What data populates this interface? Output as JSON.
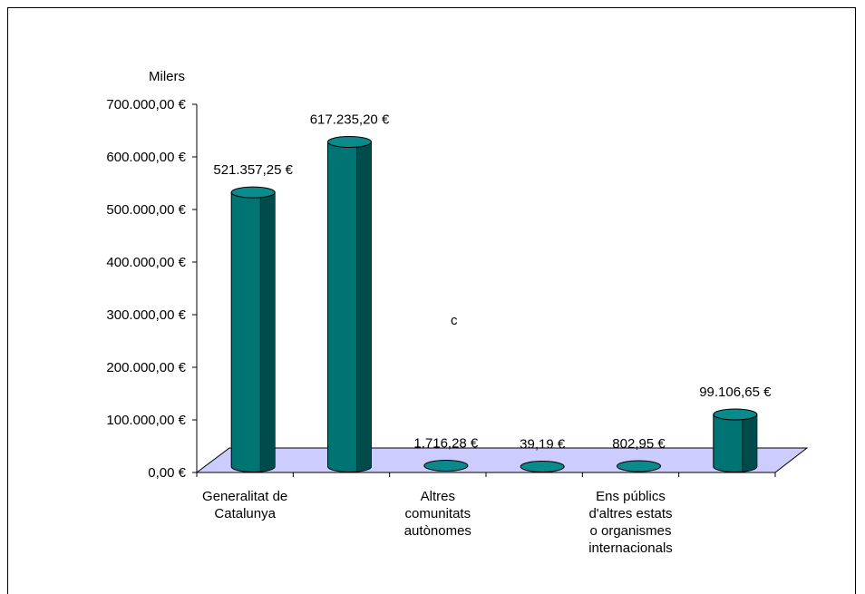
{
  "chart_data": {
    "type": "bar",
    "unit_label": "Milers",
    "ylim": [
      0,
      700000
    ],
    "y_ticks": [
      "0,00 €",
      "100.000,00 €",
      "200.000,00 €",
      "300.000,00 €",
      "400.000,00 €",
      "500.000,00 €",
      "600.000,00 €",
      "700.000,00 €"
    ],
    "categories": [
      {
        "label": "Generalitat de\nCatalunya"
      },
      {
        "label": ""
      },
      {
        "label": "Altres\ncomunitats\nautònomes"
      },
      {
        "label": ""
      },
      {
        "label": "Ens públics\nd'altres estats\no organismes\ninternacionals"
      },
      {
        "label": ""
      }
    ],
    "values": [
      521357.25,
      617235.2,
      1716.28,
      39.19,
      802.95,
      99106.65
    ],
    "value_labels": [
      "521.357,25 €",
      "617.235,20 €",
      "1.716,28 €",
      "39,19 €",
      "802,95 €",
      "99.106,65 €"
    ],
    "annotation": "c",
    "colors": {
      "bar_front": "#007373",
      "bar_dark": "#004b4b",
      "bar_top": "#0a8a8a",
      "floor": "#ccccff"
    }
  }
}
